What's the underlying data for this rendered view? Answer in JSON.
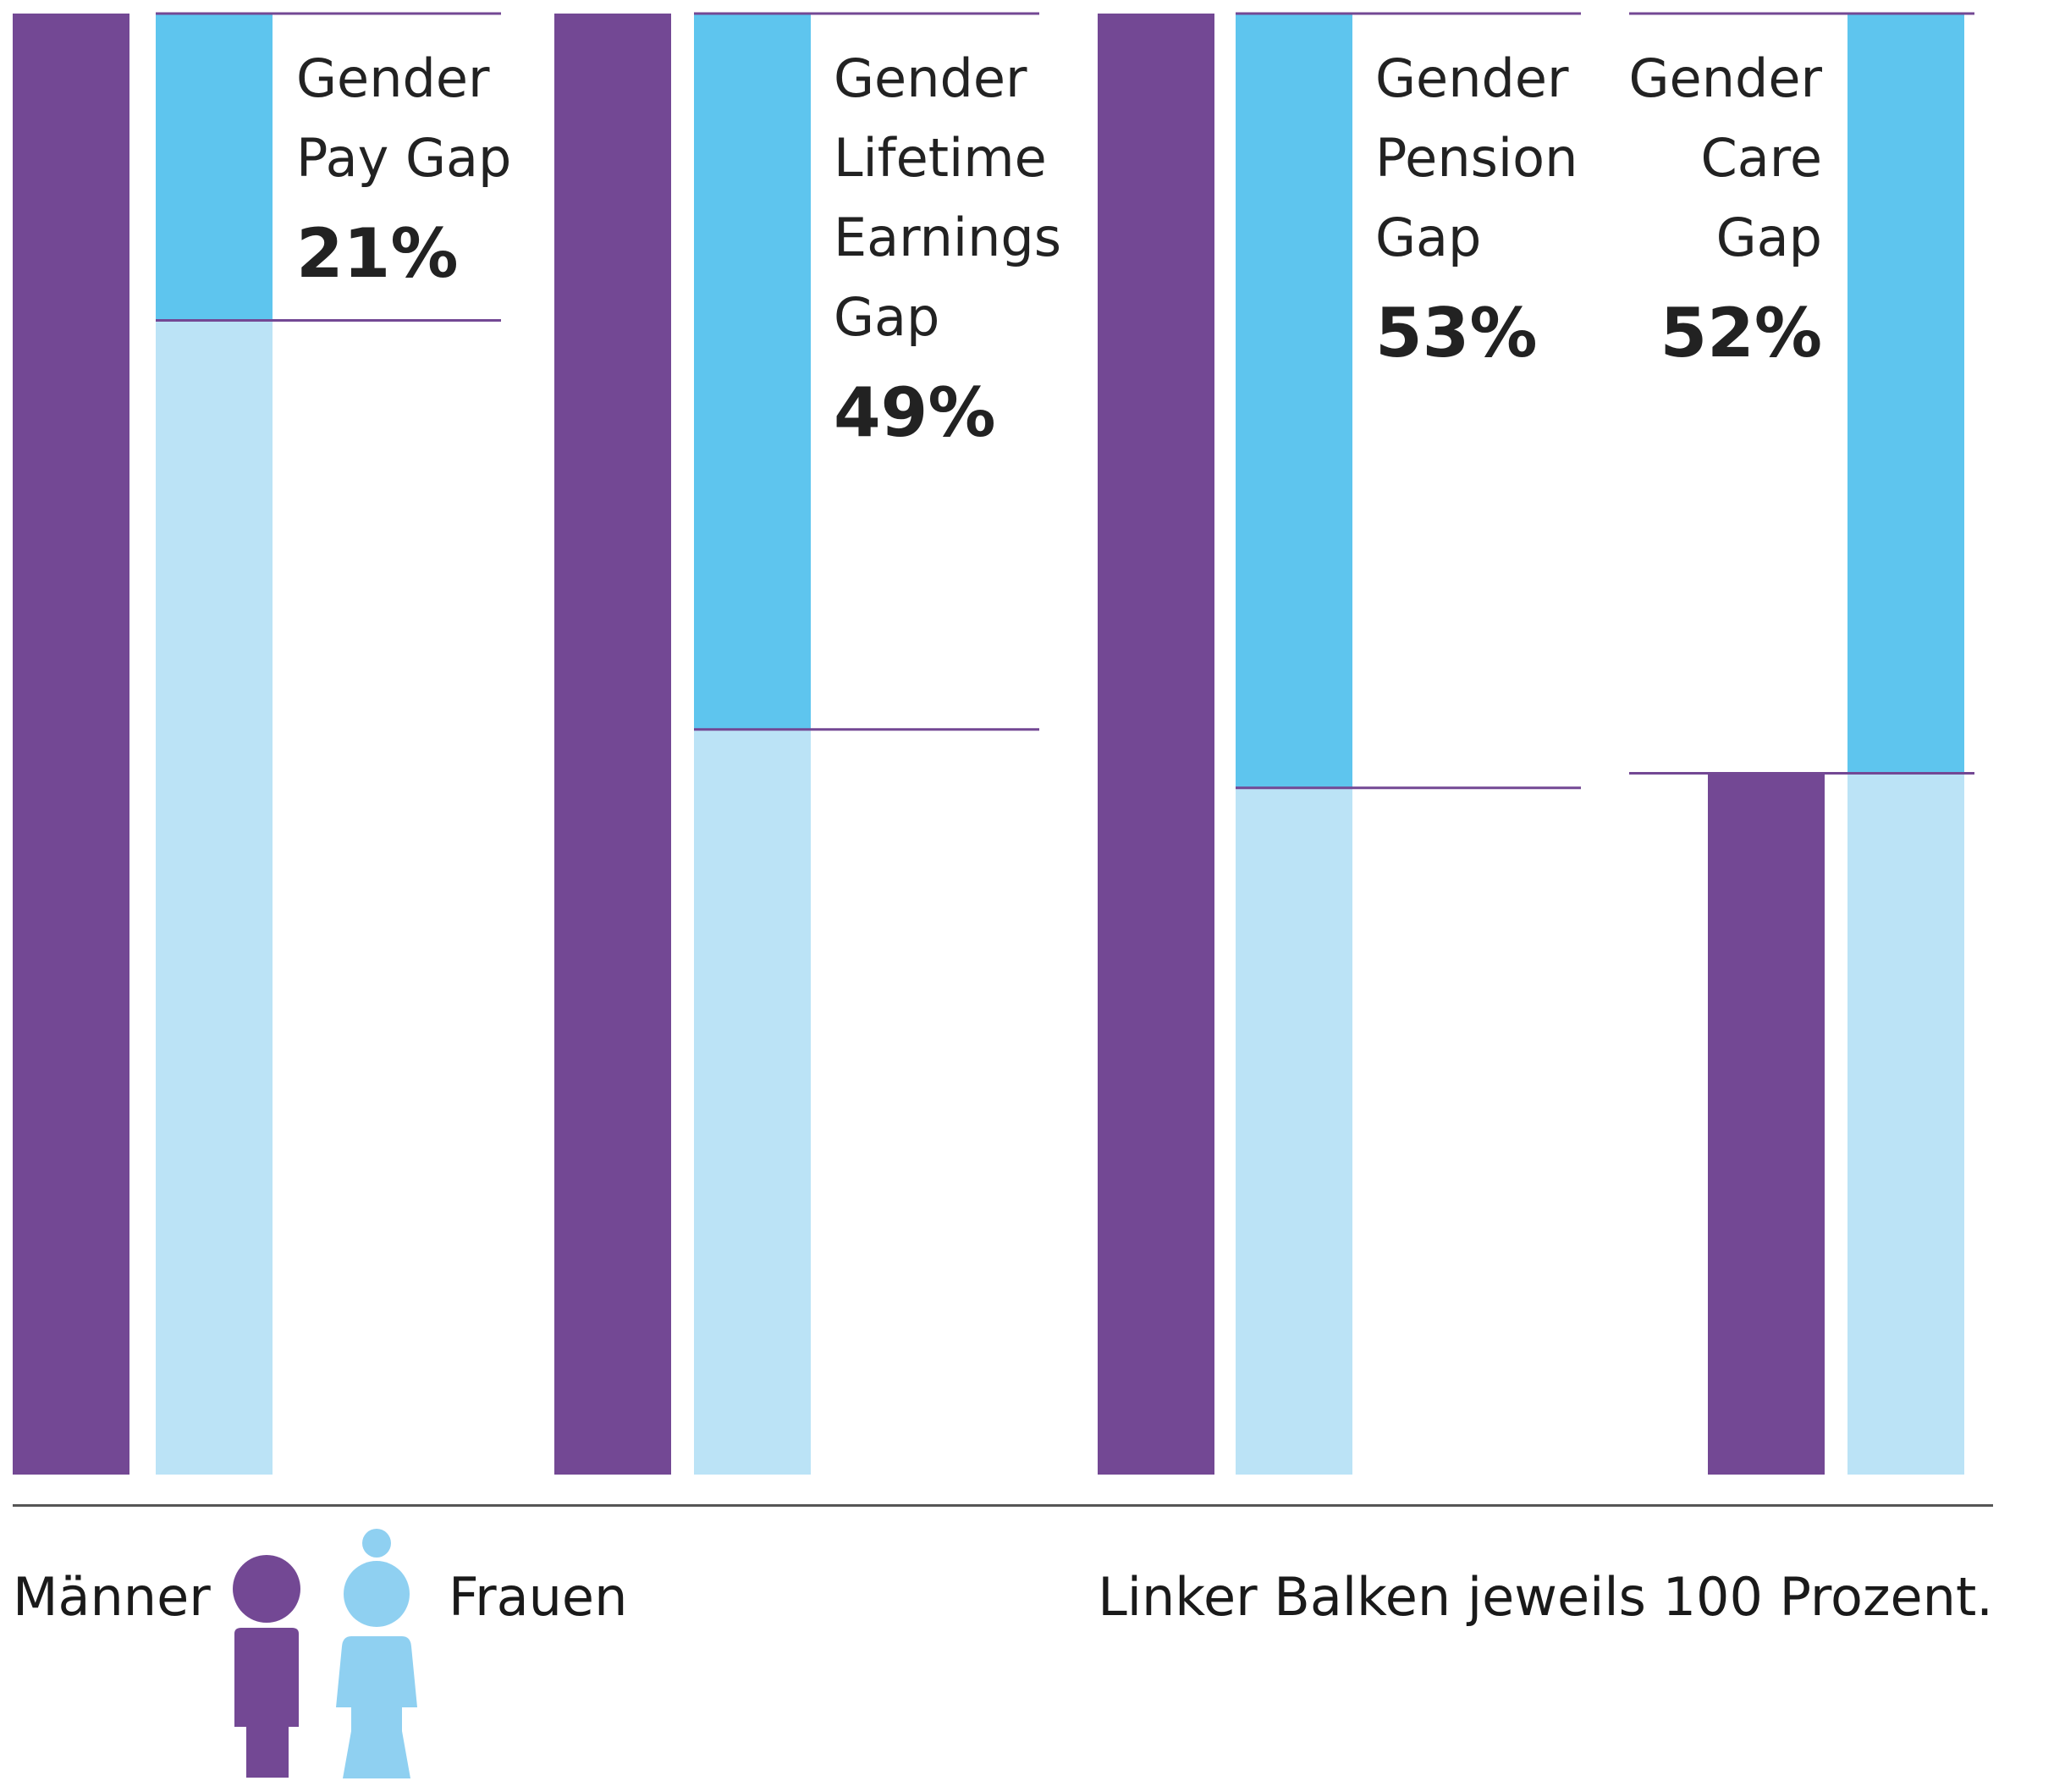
{
  "chart_data": {
    "type": "bar",
    "note": "",
    "categories": [
      "Gender Pay Gap",
      "Gender Lifetime Earnings Gap",
      "Gender Pension Gap",
      "Gender Care Gap"
    ],
    "gaps": [
      {
        "label_lines": [
          "Gender",
          "Pay Gap"
        ],
        "value": 21,
        "value_label": "21%",
        "longer_bar": "Männer"
      },
      {
        "label_lines": [
          "Gender",
          "Lifetime",
          "Earnings",
          "Gap"
        ],
        "value": 49,
        "value_label": "49%",
        "longer_bar": "Männer"
      },
      {
        "label_lines": [
          "Gender",
          "Pension",
          "Gap"
        ],
        "value": 53,
        "value_label": "53%",
        "longer_bar": "Männer"
      },
      {
        "label_lines": [
          "Gender",
          "Care",
          "Gap"
        ],
        "value": 52,
        "value_label": "52%",
        "longer_bar": "Frauen"
      }
    ],
    "series": [
      {
        "name": "Männer",
        "color": "#734894"
      },
      {
        "name": "Frauen",
        "color": "#bbe3f6",
        "gap_color": "#5ec5ee"
      }
    ],
    "ylim": [
      0,
      100
    ]
  },
  "legend": {
    "men_label": "Männer",
    "women_label": "Frauen",
    "men_icon": "man-icon",
    "women_icon": "woman-icon"
  },
  "footnote": "Linker Balken jeweils 100 Prozent.",
  "colors": {
    "men": "#734894",
    "women_light": "#bbe3f6",
    "women_gap": "#5ec5ee",
    "guide_line": "#734894",
    "woman_icon": "#8fd0f1"
  }
}
